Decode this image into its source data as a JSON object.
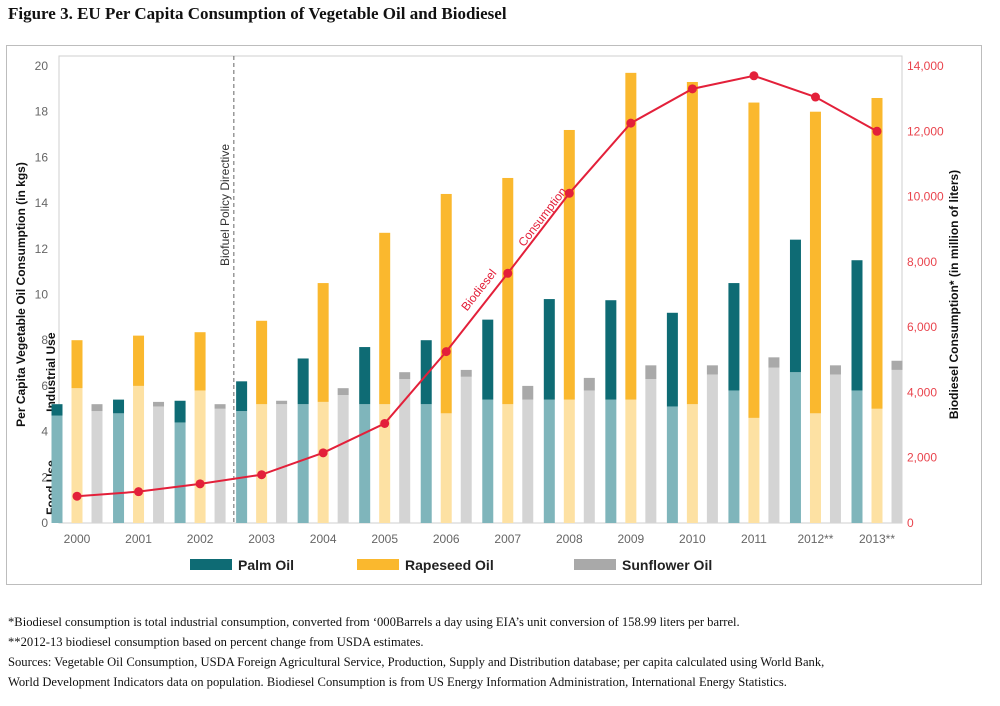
{
  "figure_title": "Figure 3. EU Per Capita Consumption of Vegetable Oil and Biodiesel",
  "chart_data": {
    "type": "bar",
    "title": "Figure 3. EU Per Capita Consumption of Vegetable Oil and Biodiesel",
    "categories": [
      "2000",
      "2001",
      "2002",
      "2003",
      "2004",
      "2005",
      "2006",
      "2007",
      "2008",
      "2009",
      "2010",
      "2011",
      "2012**",
      "2013**"
    ],
    "ylabel": "Per Capita Vegetable Oil Consumption (in kgs)",
    "ylabel_right": "Biodiesel Consumption* (in million of liters)",
    "ylim": [
      0,
      20
    ],
    "ylim_right": [
      0,
      14000
    ],
    "yticks": [
      0,
      2,
      4,
      6,
      8,
      10,
      12,
      14,
      16,
      18,
      20
    ],
    "yticks_right": [
      "0",
      "2,000",
      "4,000",
      "6,000",
      "8,000",
      "10,000",
      "12,000",
      "14,000"
    ],
    "yticks_right_values": [
      0,
      2000,
      4000,
      6000,
      8000,
      10000,
      12000,
      14000
    ],
    "series": [
      {
        "name": "Palm Oil",
        "color": "#0e6b74",
        "food_color": "#7fb5bb",
        "food": [
          4.7,
          4.8,
          4.4,
          4.9,
          5.2,
          5.2,
          5.2,
          5.4,
          5.4,
          5.4,
          5.1,
          5.8,
          6.6,
          5.8
        ],
        "values": [
          5.2,
          5.4,
          5.35,
          6.2,
          7.2,
          7.7,
          8.0,
          8.9,
          9.8,
          9.75,
          9.2,
          10.5,
          12.4,
          11.5
        ]
      },
      {
        "name": "Rapeseed Oil",
        "color": "#fab82e",
        "food_color": "#fde1a3",
        "food": [
          5.9,
          6.0,
          5.8,
          5.2,
          5.3,
          5.2,
          4.8,
          5.2,
          5.4,
          5.4,
          5.2,
          4.6,
          4.8,
          5.0
        ],
        "values": [
          8.0,
          8.2,
          8.35,
          8.85,
          10.5,
          12.7,
          14.4,
          15.1,
          17.2,
          19.7,
          19.3,
          18.4,
          18.0,
          18.6
        ]
      },
      {
        "name": "Sunflower Oil",
        "color": "#a9a9a9",
        "food_color": "#d4d4d4",
        "food": [
          4.9,
          5.1,
          5.0,
          5.2,
          5.6,
          6.3,
          6.4,
          5.4,
          5.8,
          6.3,
          6.5,
          6.8,
          6.5,
          6.7
        ],
        "values": [
          5.2,
          5.3,
          5.2,
          5.35,
          5.9,
          6.6,
          6.7,
          6.0,
          6.35,
          6.9,
          6.9,
          7.25,
          6.9,
          7.1
        ]
      }
    ],
    "line": {
      "name": "Biodiesel Consumption",
      "color": "#e3203a",
      "values": [
        820,
        960,
        1200,
        1480,
        2150,
        3050,
        5250,
        7650,
        10100,
        12250,
        13300,
        13700,
        13050,
        12000
      ]
    },
    "line_label_1": "Biodiesel",
    "line_label_2": "Consumption",
    "annotation": "Biofuel Policy Directive",
    "annotation_category": "2003",
    "band_labels": {
      "upper": "Industrial Use",
      "lower": "Food Use"
    },
    "legend": [
      "Palm Oil",
      "Rapeseed Oil",
      "Sunflower Oil"
    ]
  },
  "notes": [
    "*Biodiesel consumption is total industrial consumption, converted from ‘000Barrels a day using EIA’s unit conversion of 158.99 liters per barrel.",
    "**2012-13 biodiesel consumption based on percent change from USDA estimates.",
    "Sources: Vegetable Oil Consumption, USDA Foreign Agricultural Service, Production, Supply and Distribution database; per capita calculated using World Bank,",
    "World Development Indicators data on population. Biodiesel Consumption is from US Energy Information Administration, International Energy Statistics."
  ]
}
